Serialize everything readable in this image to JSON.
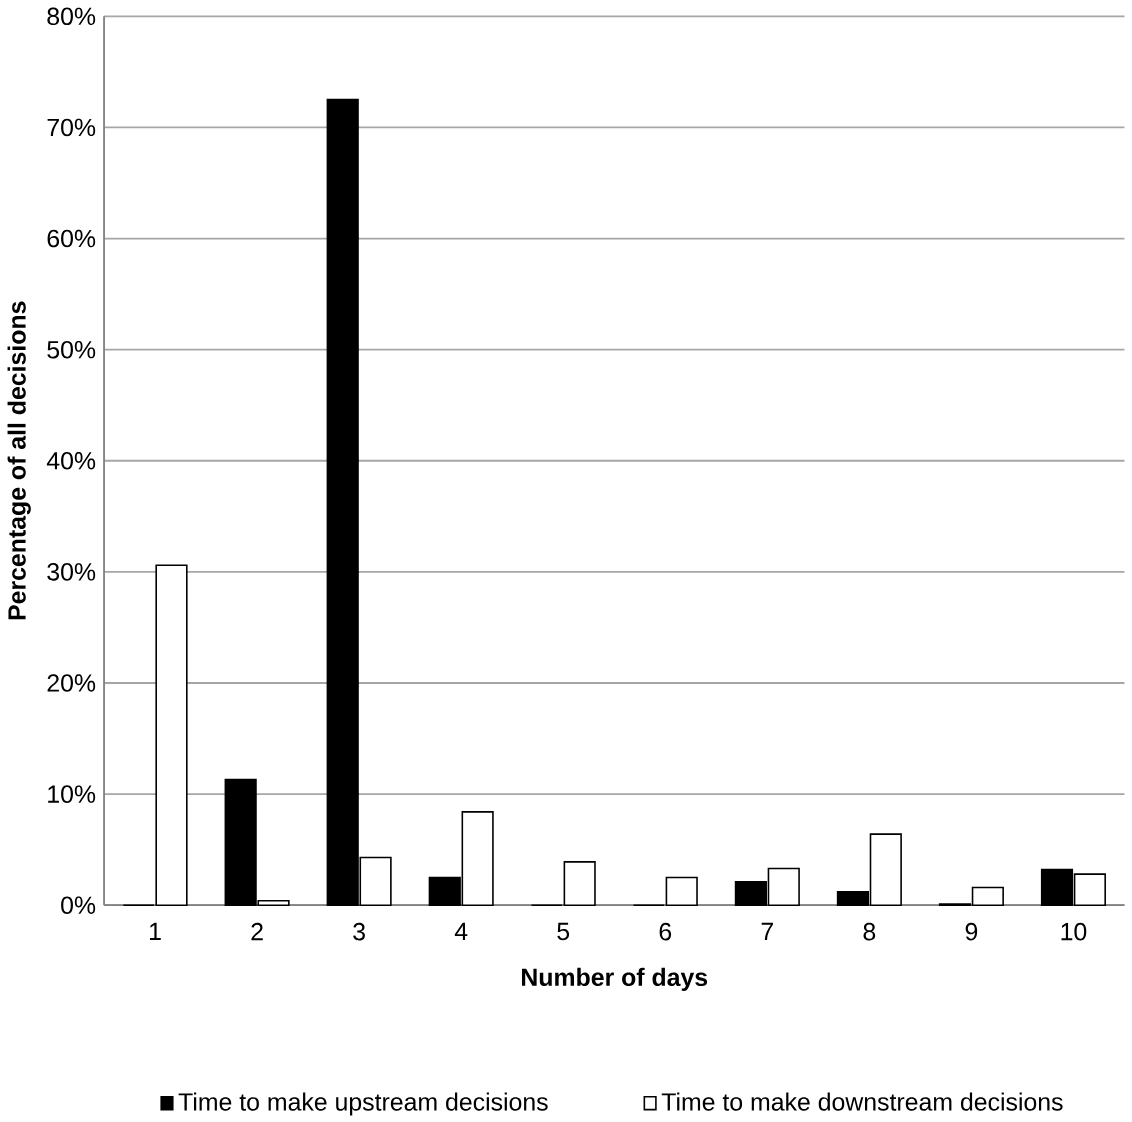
{
  "chart_data": {
    "type": "bar",
    "xlabel": "Number of days",
    "ylabel": "Percentage of all decisions",
    "categories": [
      "1",
      "2",
      "3",
      "4",
      "5",
      "6",
      "7",
      "8",
      "9",
      "10"
    ],
    "series": [
      {
        "name": "Time to make upstream decisions",
        "color": "#000000",
        "values": [
          0,
          11.3,
          72.5,
          2.5,
          0,
          0,
          2.1,
          1.2,
          0.1,
          3.2
        ]
      },
      {
        "name": "Time to make downstream decisions",
        "color": "#ffffff",
        "values": [
          30.6,
          0.4,
          4.3,
          8.4,
          3.9,
          2.5,
          3.3,
          6.4,
          1.6,
          2.8
        ]
      }
    ],
    "ylim": [
      0,
      80
    ],
    "yticks": [
      {
        "value": 0,
        "label": "0%"
      },
      {
        "value": 10,
        "label": "10%"
      },
      {
        "value": 20,
        "label": "20%"
      },
      {
        "value": 30,
        "label": "30%"
      },
      {
        "value": 40,
        "label": "40%"
      },
      {
        "value": 50,
        "label": "50%"
      },
      {
        "value": 60,
        "label": "60%"
      },
      {
        "value": 70,
        "label": "70%"
      },
      {
        "value": 80,
        "label": "80%"
      }
    ],
    "grid": "y",
    "legend": "bottom"
  }
}
